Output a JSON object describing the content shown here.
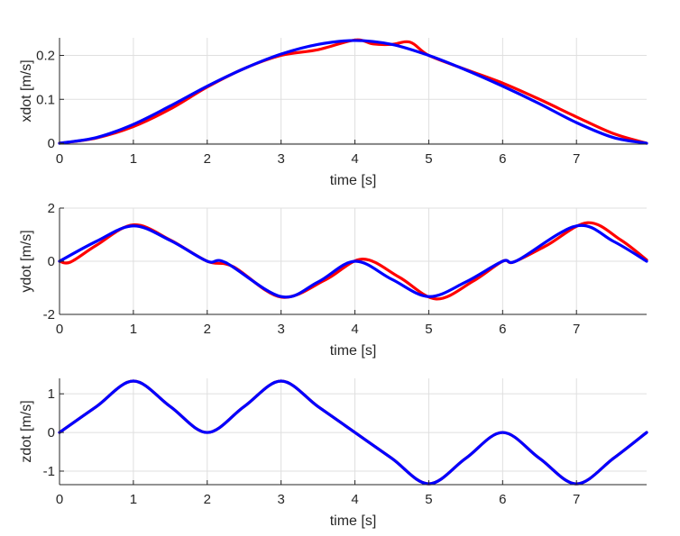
{
  "chart_data": [
    {
      "type": "line",
      "xlabel": "time [s]",
      "ylabel": "xdot [m/s]",
      "xlim": [
        0,
        7.95
      ],
      "ylim": [
        -0.002,
        0.24
      ],
      "xticks": [
        0,
        1,
        2,
        3,
        4,
        5,
        6,
        7
      ],
      "yticks": [
        0,
        0.1,
        0.2
      ],
      "ytick_labels": [
        "0",
        "0.1",
        "0.2"
      ],
      "grid": true,
      "series": [
        {
          "color": "#ff0000",
          "x": [
            0,
            0.5,
            1,
            1.5,
            2,
            2.5,
            3,
            3.5,
            4,
            4.25,
            4.5,
            4.75,
            5,
            5.5,
            6,
            6.5,
            7,
            7.5,
            7.95
          ],
          "y": [
            0,
            0.012,
            0.038,
            0.078,
            0.128,
            0.17,
            0.2,
            0.213,
            0.235,
            0.226,
            0.225,
            0.23,
            0.2,
            0.168,
            0.137,
            0.1,
            0.06,
            0.022,
            0
          ]
        },
        {
          "color": "#0000ff",
          "x": [
            0,
            0.5,
            1,
            1.5,
            2,
            2.5,
            3,
            3.5,
            4,
            4.5,
            5,
            5.5,
            6,
            6.5,
            7,
            7.5,
            7.95
          ],
          "y": [
            0,
            0.013,
            0.043,
            0.085,
            0.13,
            0.17,
            0.203,
            0.225,
            0.234,
            0.225,
            0.2,
            0.167,
            0.13,
            0.09,
            0.047,
            0.013,
            0
          ]
        }
      ]
    },
    {
      "type": "line",
      "xlabel": "time [s]",
      "ylabel": "ydot [m/s]",
      "xlim": [
        0,
        7.95
      ],
      "ylim": [
        -2,
        2
      ],
      "xticks": [
        0,
        1,
        2,
        3,
        4,
        5,
        6,
        7
      ],
      "yticks": [
        -2,
        0,
        2
      ],
      "ytick_labels": [
        "-2",
        "0",
        "2"
      ],
      "grid": true,
      "series": [
        {
          "color": "#ff0000",
          "x": [
            0,
            0.15,
            0.5,
            1,
            1.5,
            2,
            2.35,
            3,
            3.6,
            4.1,
            4.6,
            5.1,
            5.6,
            6,
            6.15,
            6.6,
            7.15,
            7.6,
            7.95
          ],
          "y": [
            0,
            -0.03,
            0.6,
            1.37,
            0.8,
            0,
            -0.2,
            -1.35,
            -0.7,
            0.08,
            -0.6,
            -1.42,
            -0.75,
            0,
            -0.03,
            0.6,
            1.45,
            0.8,
            0.05
          ]
        },
        {
          "color": "#0000ff",
          "x": [
            0,
            0.5,
            1,
            1.5,
            2,
            2.25,
            3,
            3.5,
            4,
            4.5,
            5,
            5.5,
            6,
            6.2,
            7,
            7.5,
            7.95
          ],
          "y": [
            0,
            0.75,
            1.33,
            0.78,
            0,
            -0.05,
            -1.33,
            -0.78,
            0,
            -0.68,
            -1.33,
            -0.78,
            0,
            0.03,
            1.33,
            0.75,
            0
          ]
        }
      ]
    },
    {
      "type": "line",
      "xlabel": "time [s]",
      "ylabel": "zdot [m/s]",
      "xlim": [
        0,
        7.95
      ],
      "ylim": [
        -1.35,
        1.4
      ],
      "xticks": [
        0,
        1,
        2,
        3,
        4,
        5,
        6,
        7
      ],
      "yticks": [
        -1,
        0,
        1
      ],
      "ytick_labels": [
        "-1",
        "0",
        "1"
      ],
      "grid": true,
      "series": [
        {
          "color": "#ff0000",
          "x": [
            0,
            0.5,
            1,
            1.5,
            2,
            2.5,
            3,
            3.5,
            4,
            4.5,
            5,
            5.5,
            6,
            6.5,
            7,
            7.5,
            7.95
          ],
          "y": [
            0,
            0.67,
            1.33,
            0.67,
            0,
            0.67,
            1.33,
            0.67,
            0,
            -0.67,
            -1.33,
            -0.67,
            0,
            -0.67,
            -1.33,
            -0.67,
            0
          ]
        },
        {
          "color": "#0000ff",
          "x": [
            0,
            0.5,
            1,
            1.5,
            2,
            2.5,
            3,
            3.5,
            4,
            4.5,
            5,
            5.5,
            6,
            6.5,
            7,
            7.5,
            7.95
          ],
          "y": [
            0,
            0.67,
            1.33,
            0.67,
            0,
            0.67,
            1.33,
            0.67,
            0,
            -0.67,
            -1.33,
            -0.67,
            0,
            -0.67,
            -1.33,
            -0.67,
            0
          ]
        }
      ]
    }
  ]
}
